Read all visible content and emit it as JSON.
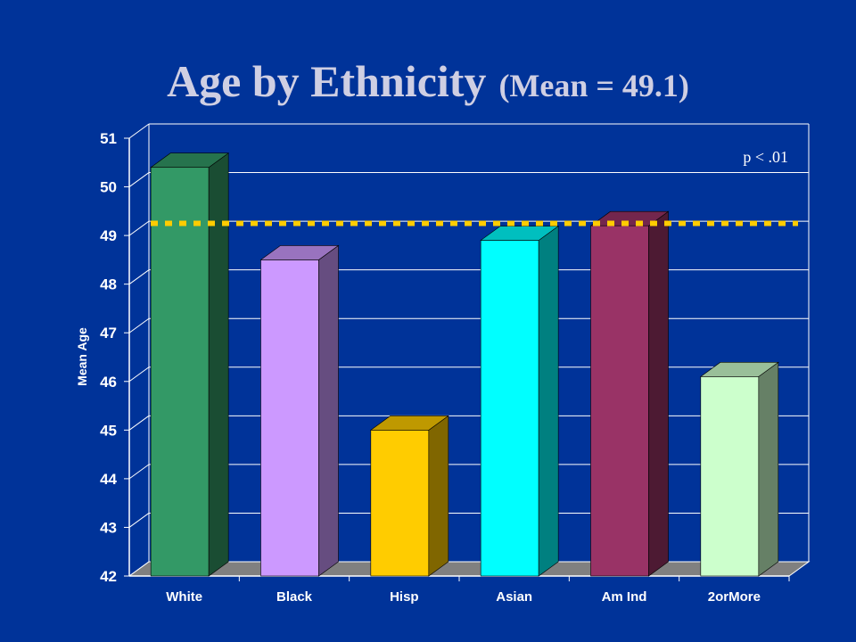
{
  "chart_data": {
    "type": "bar",
    "title": "Age by Ethnicity",
    "subtitle": "(Mean = 49.1)",
    "xlabel": "",
    "ylabel": "Mean Age",
    "ylim": [
      42,
      51
    ],
    "yticks": [
      "42",
      "43",
      "44",
      "45",
      "46",
      "47",
      "48",
      "49",
      "50",
      "51"
    ],
    "categories": [
      "White",
      "Black",
      "Hisp",
      "Asian",
      "Am Ind",
      "2orMore"
    ],
    "values": [
      50.4,
      48.5,
      45.0,
      48.9,
      49.2,
      46.1
    ],
    "colors": [
      "#339966",
      "#cc99ff",
      "#ffcc00",
      "#00ffff",
      "#993366",
      "#ccffcc"
    ],
    "reference_line": {
      "value": 49.25,
      "color": "#ffcc00",
      "style": "dotted"
    },
    "annotation": "p < .01",
    "grid": true,
    "legend": "none"
  }
}
